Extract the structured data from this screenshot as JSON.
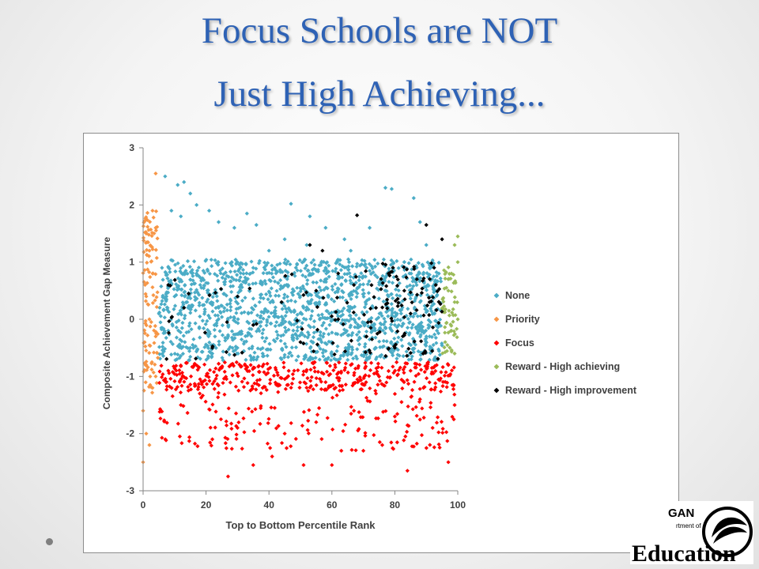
{
  "slide": {
    "title_line_1": "Focus Schools are NOT",
    "title_line_2": "Just High Achieving..."
  },
  "logo": {
    "text_fragment": "GAN",
    "dept_text": "rtment of",
    "word": "Education"
  },
  "colors": {
    "title": "#2e62b5",
    "none": "#4bacc6",
    "priority": "#f79646",
    "focus": "#ff0000",
    "reward_high_achieving": "#9bbb59",
    "reward_high_improvement": "#000000"
  },
  "chart_data": {
    "type": "scatter",
    "xlabel": "Top to Bottom Percentile Rank",
    "ylabel": "Composite Achievement Gap Measure",
    "xlim": [
      0,
      100
    ],
    "ylim": [
      -3,
      3
    ],
    "xticks": [
      "0",
      "20",
      "40",
      "60",
      "80",
      "100"
    ],
    "yticks": [
      "3",
      "2",
      "1",
      "0",
      "-1",
      "-2",
      "-3"
    ],
    "grid": false,
    "legend_position": "right",
    "marker": "diamond",
    "series": [
      {
        "name": "None",
        "color": "#4bacc6",
        "description": "dense cloud, x 5-95, y -0.75 to 1.1 with sparse outliers up to 2.4",
        "points": [
          [
            7,
            2.5
          ],
          [
            11,
            2.35
          ],
          [
            13,
            2.4
          ],
          [
            15,
            2.2
          ],
          [
            17,
            2.0
          ],
          [
            9,
            1.9
          ],
          [
            12,
            1.8
          ],
          [
            21,
            1.9
          ],
          [
            24,
            1.7
          ],
          [
            33,
            1.85
          ],
          [
            29,
            1.6
          ],
          [
            36,
            1.65
          ],
          [
            47,
            2.02
          ],
          [
            53,
            1.8
          ],
          [
            58,
            1.6
          ],
          [
            64,
            1.4
          ],
          [
            72,
            1.6
          ],
          [
            77,
            2.3
          ],
          [
            79,
            2.28
          ],
          [
            86,
            2.12
          ],
          [
            88,
            1.7
          ],
          [
            90,
            1.3
          ],
          [
            45,
            1.4
          ],
          [
            52,
            1.3
          ],
          [
            40,
            1.2
          ],
          [
            66,
            1.2
          ],
          [
            83,
            1.0
          ],
          [
            6,
            0.9
          ],
          [
            10,
            0.4
          ],
          [
            15,
            -0.5
          ],
          [
            19,
            0.7
          ],
          [
            24,
            0.2
          ],
          [
            27,
            -0.3
          ],
          [
            31,
            0.5
          ],
          [
            35,
            0.9
          ],
          [
            38,
            -0.6
          ],
          [
            42,
            0.1
          ],
          [
            46,
            0.6
          ],
          [
            49,
            -0.2
          ],
          [
            53,
            0.8
          ],
          [
            56,
            0.3
          ],
          [
            60,
            -0.4
          ],
          [
            63,
            0.6
          ],
          [
            67,
            0.0
          ],
          [
            71,
            0.9
          ],
          [
            74,
            -0.5
          ],
          [
            78,
            0.4
          ],
          [
            82,
            0.1
          ],
          [
            86,
            0.7
          ],
          [
            90,
            -0.3
          ],
          [
            93,
            0.5
          ],
          [
            8,
            -0.2
          ],
          [
            14,
            0.3
          ],
          [
            22,
            -0.6
          ],
          [
            30,
            1.0
          ],
          [
            37,
            0.3
          ],
          [
            44,
            -0.7
          ],
          [
            51,
            0.2
          ],
          [
            58,
            0.9
          ],
          [
            65,
            -0.6
          ],
          [
            73,
            0.2
          ],
          [
            80,
            -0.1
          ],
          [
            88,
            0.3
          ],
          [
            94,
            0.8
          ]
        ]
      },
      {
        "name": "Priority",
        "color": "#f79646",
        "description": "x 0-5, y -2.5 to 2.55",
        "points": [
          [
            4,
            2.55
          ],
          [
            3,
            1.9
          ],
          [
            1,
            1.5
          ],
          [
            2,
            1.2
          ],
          [
            4,
            1.6
          ],
          [
            3,
            0.8
          ],
          [
            1,
            0.4
          ],
          [
            2,
            0.0
          ],
          [
            4,
            -0.3
          ],
          [
            1,
            -0.8
          ],
          [
            3,
            -1.2
          ],
          [
            0,
            -1.6
          ],
          [
            1,
            -2.0
          ],
          [
            2,
            -2.2
          ],
          [
            0,
            -2.5
          ],
          [
            4,
            -1.0
          ]
        ]
      },
      {
        "name": "Focus",
        "color": "#ff0000",
        "description": "x 5-100, y -0.75 to -2.75",
        "points": [
          [
            27,
            -2.75
          ],
          [
            35,
            -2.55
          ],
          [
            41,
            -2.4
          ],
          [
            51,
            -2.55
          ],
          [
            60,
            -2.55
          ],
          [
            63,
            -2.3
          ],
          [
            70,
            -2.3
          ],
          [
            76,
            -2.2
          ],
          [
            84,
            -2.65
          ],
          [
            97,
            -2.5
          ],
          [
            22,
            -2.1
          ],
          [
            30,
            -1.9
          ],
          [
            45,
            -2.0
          ],
          [
            55,
            -1.8
          ],
          [
            67,
            -1.6
          ],
          [
            80,
            -1.7
          ],
          [
            92,
            -1.9
          ],
          [
            12,
            -1.5
          ],
          [
            18,
            -1.3
          ],
          [
            38,
            -1.2
          ],
          [
            58,
            -1.1
          ],
          [
            74,
            -1.3
          ],
          [
            88,
            -1.4
          ],
          [
            99,
            -1.5
          ],
          [
            8,
            -0.9
          ],
          [
            25,
            -0.85
          ],
          [
            48,
            -0.9
          ],
          [
            66,
            -0.8
          ],
          [
            85,
            -0.9
          ],
          [
            97,
            -0.8
          ]
        ]
      },
      {
        "name": "Reward - High achieving",
        "color": "#9bbb59",
        "description": "x 95-100, y -0.6 to 1.45",
        "points": [
          [
            100,
            1.45
          ],
          [
            99,
            1.3
          ],
          [
            100,
            1.0
          ],
          [
            98,
            0.8
          ],
          [
            97,
            0.5
          ],
          [
            99,
            0.3
          ],
          [
            100,
            0.0
          ],
          [
            98,
            -0.2
          ],
          [
            96,
            -0.4
          ],
          [
            99,
            -0.6
          ]
        ]
      },
      {
        "name": "Reward - High improvement",
        "color": "#000000",
        "description": "x 5-97, concentrated x 70-95, y -0.75 to 1.82",
        "points": [
          [
            68,
            1.82
          ],
          [
            90,
            1.65
          ],
          [
            95,
            1.4
          ],
          [
            53,
            1.3
          ],
          [
            57,
            1.2
          ],
          [
            8,
            0.6
          ],
          [
            13,
            0.2
          ],
          [
            22,
            -0.5
          ],
          [
            30,
            0.4
          ],
          [
            35,
            -0.1
          ],
          [
            44,
            0.3
          ],
          [
            50,
            -0.4
          ],
          [
            55,
            0.5
          ],
          [
            62,
            0.0
          ],
          [
            67,
            0.6
          ],
          [
            71,
            -0.3
          ],
          [
            74,
            0.2
          ],
          [
            78,
            0.8
          ],
          [
            80,
            -0.5
          ],
          [
            83,
            0.5
          ],
          [
            85,
            0.1
          ],
          [
            87,
            0.7
          ],
          [
            89,
            -0.6
          ],
          [
            91,
            0.3
          ],
          [
            93,
            0.6
          ]
        ]
      }
    ]
  }
}
